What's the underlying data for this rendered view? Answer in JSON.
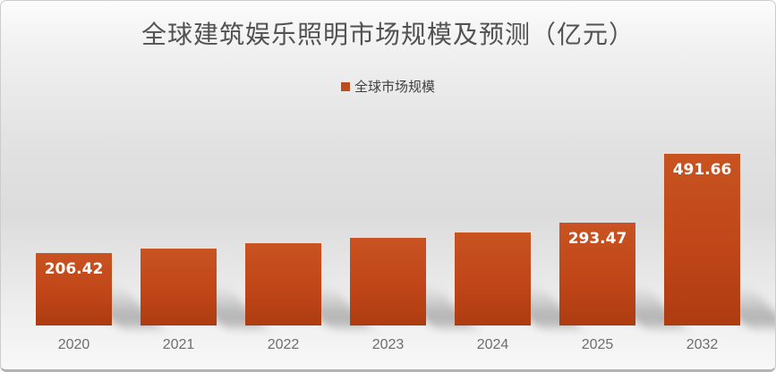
{
  "chart_data": {
    "type": "bar",
    "title": "全球建筑娱乐照明市场规模及预测（亿元）",
    "legend": [
      {
        "label": "全球市场规模",
        "color": "#bf4a1e"
      }
    ],
    "categories": [
      "2020",
      "2021",
      "2022",
      "2023",
      "2024",
      "2025",
      "2032"
    ],
    "series": [
      {
        "name": "全球市场规模",
        "values": [
          206.42,
          220,
          236,
          251,
          266,
          293.47,
          491.66
        ]
      }
    ],
    "data_labels": [
      "206.42",
      "",
      "",
      "",
      "",
      "293.47",
      "491.66"
    ],
    "xlabel": "",
    "ylabel": "",
    "ylim": [
      0,
      500
    ],
    "grid": false,
    "legend_position": "top-center",
    "colors": {
      "bar_top": "#c85321",
      "bar_mid": "#c04618",
      "bar_bottom": "#ad3c11",
      "data_label": "#ffffff",
      "title": "#525252",
      "axis_label": "#6e6e6e"
    }
  }
}
